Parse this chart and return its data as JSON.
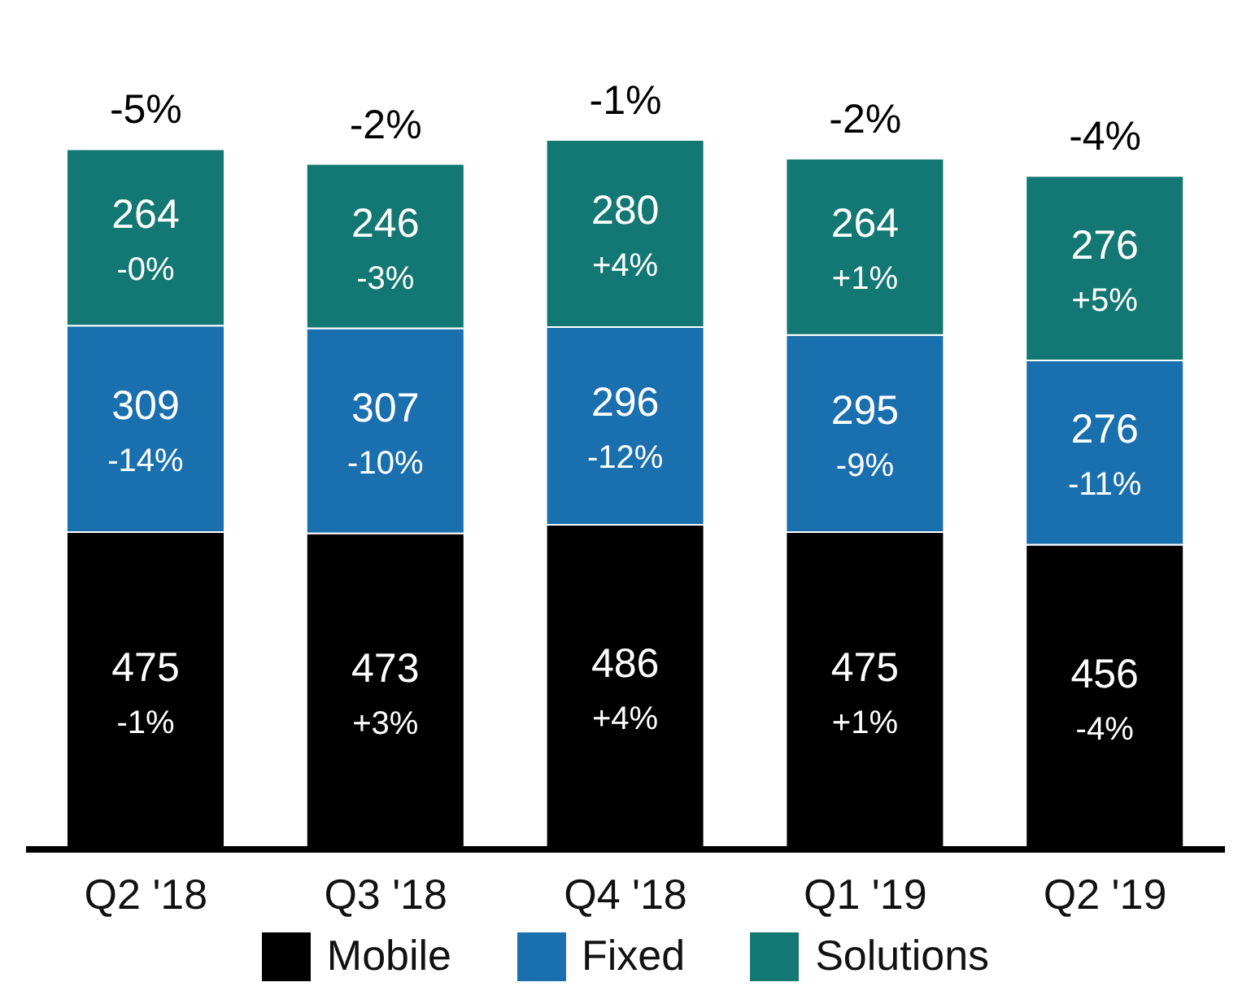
{
  "chart_data": {
    "type": "bar",
    "stacked": true,
    "categories": [
      "Q2 '18",
      "Q3 '18",
      "Q4 '18",
      "Q1 '19",
      "Q2 '19"
    ],
    "series": [
      {
        "name": "Mobile",
        "color": "#000000",
        "values": [
          475,
          473,
          486,
          475,
          456
        ],
        "value_labels": [
          "475\n-1%",
          "473\n+3%",
          "486\n+4%",
          "475\n+1%",
          "456\n-4%"
        ]
      },
      {
        "name": "Fixed",
        "color": "#1a6faf",
        "values": [
          309,
          307,
          296,
          295,
          276
        ],
        "value_labels": [
          "309\n-14%",
          "307\n-10%",
          "296\n-12%",
          "295\n-9%",
          "276\n-11%"
        ]
      },
      {
        "name": "Solutions",
        "color": "#137773",
        "values": [
          264,
          246,
          280,
          264,
          276
        ],
        "value_labels": [
          "264\n-0%",
          "246\n-3%",
          "280\n+4%",
          "264\n+1%",
          "276\n+5%"
        ]
      }
    ],
    "annotations": [
      {
        "text": "-5%",
        "x": "Q2 '18",
        "y": 1048
      },
      {
        "text": "-2%",
        "x": "Q3 '18",
        "y": 1026
      },
      {
        "text": "-1%",
        "x": "Q4 '18",
        "y": 1062
      },
      {
        "text": "-2%",
        "x": "Q1 '19",
        "y": 1034
      },
      {
        "text": "-4%",
        "x": "Q2 '19",
        "y": 1008
      }
    ],
    "legend": "bottom"
  }
}
